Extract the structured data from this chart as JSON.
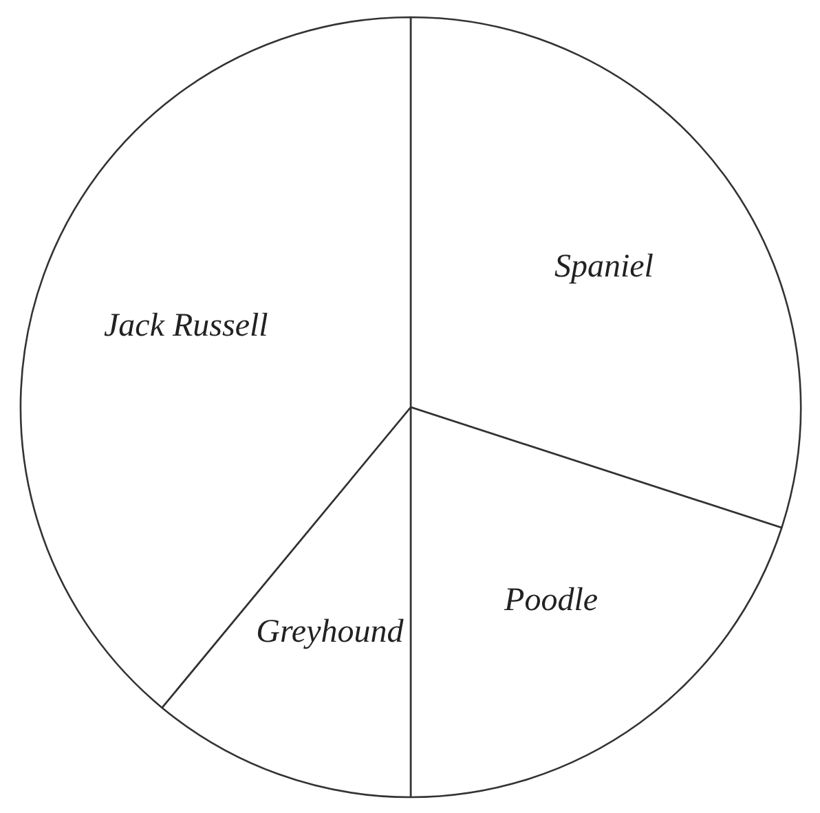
{
  "chart_data": {
    "type": "pie",
    "categories": [
      "Spaniel",
      "Poodle",
      "Greyhound",
      "Jack Russell"
    ],
    "values": [
      30,
      20,
      11,
      39
    ],
    "colors": [
      "#ffffff",
      "#ffffff",
      "#ffffff",
      "#ffffff"
    ]
  }
}
